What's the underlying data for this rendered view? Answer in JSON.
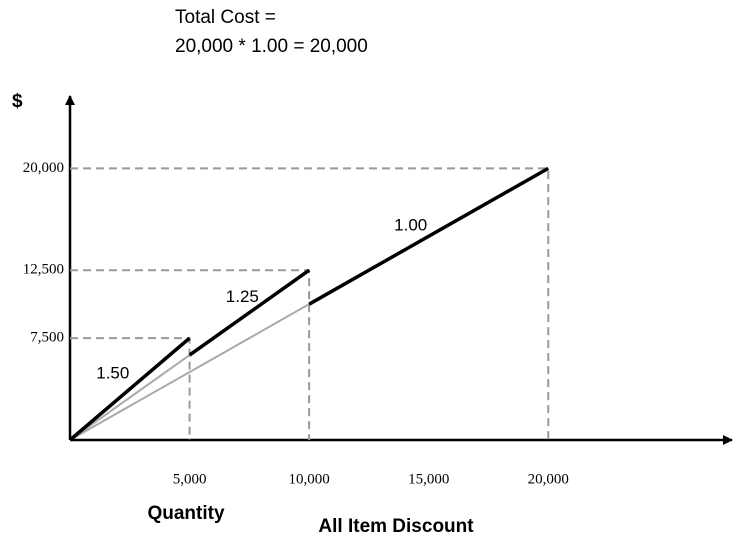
{
  "chart_data": {
    "type": "line",
    "title": "Total Cost =",
    "subtitle": "20,000 * 1.00 = 20,000",
    "y_label": "$",
    "x_label": "Quantity",
    "caption": "All Item Discount",
    "xlim": [
      0,
      27600
    ],
    "ylim": [
      0,
      25400
    ],
    "xticks": [
      {
        "value": 5000,
        "label": "5,000"
      },
      {
        "value": 10000,
        "label": "10,000"
      },
      {
        "value": 15000,
        "label": "15,000"
      },
      {
        "value": 20000,
        "label": "20,000"
      }
    ],
    "yticks": [
      {
        "value": 7500,
        "label": "7,500"
      },
      {
        "value": 12500,
        "label": "12,500"
      },
      {
        "value": 20000,
        "label": "20,000"
      }
    ],
    "series": [
      {
        "color": "#aaaaaa",
        "x": [
          0,
          5000
        ],
        "values": [
          0,
          6250
        ]
      },
      {
        "color": "#aaaaaa",
        "x": [
          0,
          10000
        ],
        "values": [
          0,
          10000
        ]
      },
      {
        "name": "1.50",
        "color": "#000000",
        "x": [
          0,
          5000
        ],
        "values": [
          0,
          7500
        ]
      },
      {
        "name": "1.25",
        "color": "#000000",
        "x": [
          5000,
          10000
        ],
        "values": [
          6250,
          12500
        ]
      },
      {
        "name": "1.00",
        "color": "#000000",
        "x": [
          10000,
          20000
        ],
        "values": [
          10000,
          20000
        ]
      }
    ]
  }
}
